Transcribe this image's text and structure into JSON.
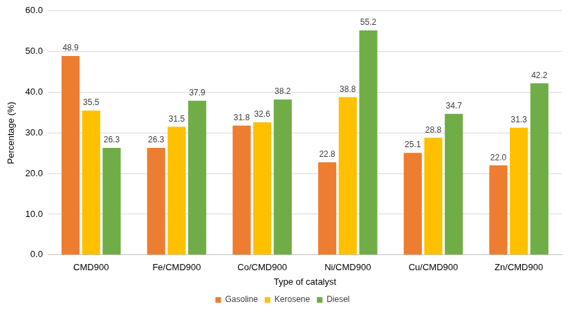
{
  "chart_data": {
    "type": "bar",
    "x_label": "Type of catalyst",
    "y_label": "Percentage (%)",
    "categories": [
      "CMD900",
      "Fe/CMD900",
      "Co/CMD900",
      "Ni/CMD900",
      "Cu/CMD900",
      "Zn/CMD900"
    ],
    "series": [
      {
        "name": "Gasoline",
        "color": "#ed7d31",
        "values": [
          48.9,
          26.3,
          31.8,
          22.8,
          25.1,
          22.0
        ],
        "value_labels": [
          "48.9",
          "26.3",
          "31.8",
          "22.8",
          "25.1",
          "22.0"
        ]
      },
      {
        "name": "Kerosene",
        "color": "#ffc000",
        "values": [
          35.5,
          31.5,
          32.6,
          38.8,
          28.8,
          31.3
        ],
        "value_labels": [
          "35.5",
          "31.5",
          "32.6",
          "38.8",
          "28.8",
          "31.3"
        ]
      },
      {
        "name": "Diesel",
        "color": "#70ad47",
        "values": [
          26.3,
          37.9,
          38.2,
          55.2,
          34.7,
          42.2
        ],
        "value_labels": [
          "26.3",
          "37.9",
          "38.2",
          "55.2",
          "34.7",
          "42.2"
        ]
      }
    ],
    "ylim": [
      0,
      60
    ],
    "yticks": [
      {
        "value": 0,
        "label": "0.0"
      },
      {
        "value": 10,
        "label": "10.0"
      },
      {
        "value": 20,
        "label": "20.0"
      },
      {
        "value": 30,
        "label": "30.0"
      },
      {
        "value": 40,
        "label": "40.0"
      },
      {
        "value": 50,
        "label": "50.0"
      },
      {
        "value": 60,
        "label": "60.0"
      }
    ],
    "grid": true,
    "legend": "bottom",
    "data_labels": true
  }
}
